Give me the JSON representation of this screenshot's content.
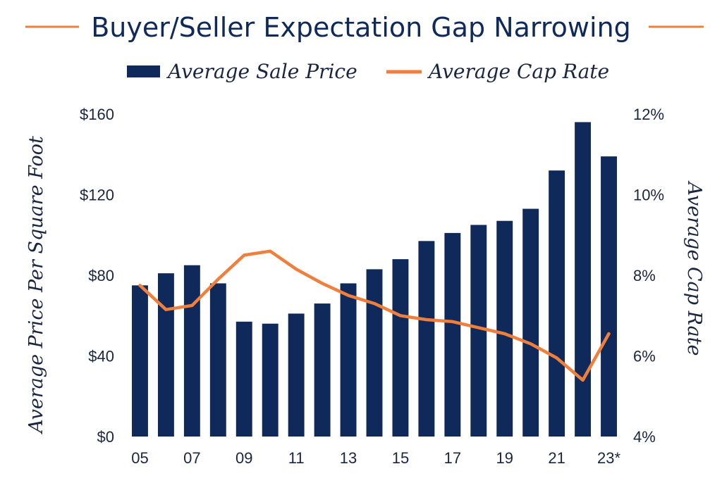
{
  "chart_data": {
    "type": "bar",
    "title": "Buyer/Seller Expectation Gap Narrowing",
    "categories": [
      "05",
      "06",
      "07",
      "08",
      "09",
      "10",
      "11",
      "12",
      "13",
      "14",
      "15",
      "16",
      "17",
      "18",
      "19",
      "20",
      "21",
      "22",
      "23*"
    ],
    "x_tick_labels": [
      "05",
      "07",
      "09",
      "11",
      "13",
      "15",
      "17",
      "19",
      "21",
      "23*"
    ],
    "series": [
      {
        "name": "Average Sale Price",
        "type": "bar",
        "axis": "left",
        "color": "#0f2a5a",
        "values": [
          75,
          81,
          85,
          76,
          57,
          56,
          61,
          66,
          76,
          83,
          88,
          97,
          101,
          105,
          107,
          113,
          132,
          156,
          139
        ]
      },
      {
        "name": "Average Cap Rate",
        "type": "line",
        "axis": "right",
        "color": "#f07f3c",
        "values": [
          7.75,
          7.15,
          7.25,
          7.9,
          8.5,
          8.6,
          8.15,
          7.8,
          7.5,
          7.3,
          7.0,
          6.9,
          6.85,
          6.7,
          6.55,
          6.3,
          5.95,
          5.4,
          6.55
        ]
      }
    ],
    "ylabel": "Average Price Per Square Foot",
    "ylabel_right": "Average Cap Rate",
    "ylim": [
      0,
      160
    ],
    "ylim_right": [
      4,
      12
    ],
    "y_ticks": [
      "$0",
      "$40",
      "$80",
      "$120",
      "$160"
    ],
    "y_ticks_right": [
      "4%",
      "6%",
      "8%",
      "10%",
      "12%"
    ],
    "legend_position": "top-center",
    "grid": false
  }
}
